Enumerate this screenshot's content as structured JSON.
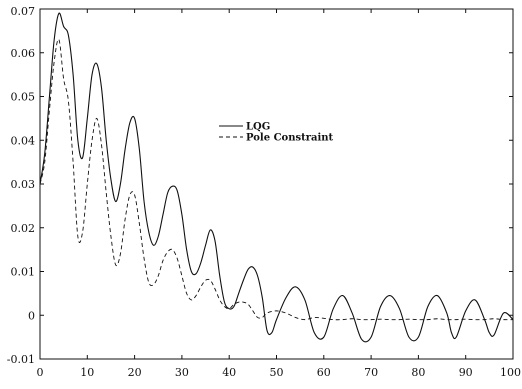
{
  "chart_data": {
    "type": "line",
    "title": "",
    "xlabel": "",
    "ylabel": "",
    "xlim": [
      0,
      100
    ],
    "ylim": [
      -0.01,
      0.07
    ],
    "grid": false,
    "legend_position": "center-right",
    "x_ticks": [
      0,
      10,
      20,
      30,
      40,
      50,
      60,
      70,
      80,
      90,
      100
    ],
    "x_tick_labels": [
      "0",
      "10",
      "20",
      "30",
      "40",
      "50",
      "60",
      "70",
      "80",
      "90",
      "100"
    ],
    "y_ticks": [
      -0.01,
      0,
      0.01,
      0.02,
      0.03,
      0.04,
      0.05,
      0.06,
      0.07
    ],
    "y_tick_labels": [
      "-0.01",
      "0",
      "0.01",
      "0.02",
      "0.03",
      "0.04",
      "0.05",
      "0.06",
      "0.07"
    ],
    "series": [
      {
        "name": "LQG",
        "style": "solid",
        "color": "#111111",
        "x": [
          0,
          1,
          2,
          3,
          4,
          5,
          6,
          7,
          8,
          9,
          10,
          11,
          12,
          13,
          14,
          15,
          16,
          17,
          18,
          19,
          20,
          21,
          22,
          23,
          24,
          25,
          26,
          27,
          28,
          29,
          30,
          31,
          32,
          33,
          34,
          35,
          36,
          37,
          38,
          39,
          40,
          41,
          42,
          43,
          44,
          45,
          46,
          47,
          48,
          49,
          50,
          52,
          54,
          56,
          58,
          60,
          62,
          64,
          66,
          68,
          70,
          72,
          74,
          76,
          78,
          80,
          82,
          84,
          86,
          87,
          88,
          90,
          92,
          94,
          95,
          96,
          98,
          100
        ],
        "y": [
          0.03,
          0.037,
          0.05,
          0.063,
          0.069,
          0.066,
          0.064,
          0.055,
          0.04,
          0.036,
          0.045,
          0.055,
          0.0575,
          0.052,
          0.04,
          0.031,
          0.026,
          0.03,
          0.038,
          0.044,
          0.045,
          0.038,
          0.026,
          0.019,
          0.016,
          0.018,
          0.023,
          0.028,
          0.0295,
          0.0285,
          0.023,
          0.015,
          0.01,
          0.0095,
          0.012,
          0.016,
          0.0195,
          0.017,
          0.009,
          0.003,
          0.0015,
          0.002,
          0.005,
          0.008,
          0.0105,
          0.011,
          0.009,
          0.004,
          -0.0035,
          -0.004,
          -0.001,
          0.004,
          0.0065,
          0.0035,
          -0.004,
          -0.005,
          0.0015,
          0.0045,
          0.0005,
          -0.0055,
          -0.005,
          0.002,
          0.0045,
          0.0015,
          -0.005,
          -0.005,
          0.002,
          0.0045,
          0.0005,
          -0.004,
          -0.005,
          0.001,
          0.0035,
          -0.001,
          -0.004,
          -0.0045,
          0.0005,
          -0.001
        ]
      },
      {
        "name": "Pole Constraint",
        "style": "dashed",
        "color": "#111111",
        "x": [
          0,
          1,
          2,
          3,
          4,
          5,
          6,
          7,
          8,
          9,
          10,
          11,
          12,
          13,
          14,
          15,
          16,
          17,
          18,
          19,
          20,
          21,
          22,
          23,
          24,
          25,
          26,
          27,
          28,
          29,
          30,
          31,
          32,
          33,
          34,
          35,
          36,
          37,
          38,
          39,
          40,
          41,
          42,
          43,
          44,
          45,
          46,
          47,
          48,
          50,
          52,
          54,
          56,
          58,
          60,
          62,
          64,
          66,
          68,
          70,
          72,
          74,
          76,
          78,
          80,
          82,
          84,
          86,
          88,
          90,
          92,
          94,
          96,
          98,
          100
        ],
        "y": [
          0.03,
          0.035,
          0.047,
          0.058,
          0.063,
          0.054,
          0.049,
          0.035,
          0.018,
          0.019,
          0.03,
          0.04,
          0.045,
          0.039,
          0.028,
          0.018,
          0.0115,
          0.014,
          0.022,
          0.0275,
          0.0275,
          0.021,
          0.013,
          0.0075,
          0.007,
          0.009,
          0.0125,
          0.0145,
          0.015,
          0.013,
          0.009,
          0.005,
          0.0035,
          0.0045,
          0.0065,
          0.008,
          0.008,
          0.006,
          0.0035,
          0.002,
          0.0015,
          0.0025,
          0.003,
          0.003,
          0.0025,
          0.001,
          -0.0005,
          -0.0005,
          0.0005,
          0.001,
          0.0005,
          -0.0005,
          -0.001,
          -0.0005,
          -0.0007,
          -0.001,
          -0.001,
          -0.0008,
          -0.001,
          -0.001,
          -0.0009,
          -0.001,
          -0.001,
          -0.0009,
          -0.001,
          -0.001,
          -0.0008,
          -0.001,
          -0.001,
          -0.0009,
          -0.001,
          -0.001,
          -0.0008,
          -0.001,
          -0.001
        ]
      }
    ]
  }
}
